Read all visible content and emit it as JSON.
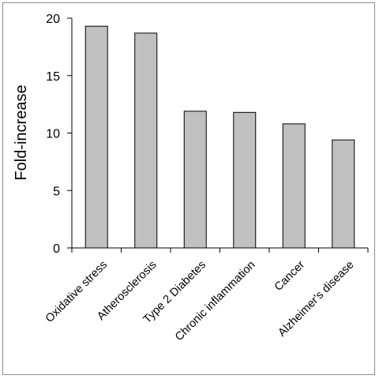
{
  "chart_data": {
    "type": "bar",
    "title": "",
    "xlabel": "",
    "ylabel": "Fold-increase",
    "ylim": [
      0,
      20
    ],
    "yticks": [
      0,
      5,
      10,
      15,
      20
    ],
    "grid": false,
    "legend": "none",
    "categories": [
      "Oxidative stress",
      "Atherosclerosis",
      "Type 2 Diabetes",
      "Chronic inflammation",
      "Cancer",
      "Alzheimer's disease"
    ],
    "values": [
      19.3,
      18.7,
      11.9,
      11.8,
      10.8,
      9.4
    ],
    "bar_color": "#c0c0c0",
    "bar_edge_color": "#000000"
  }
}
